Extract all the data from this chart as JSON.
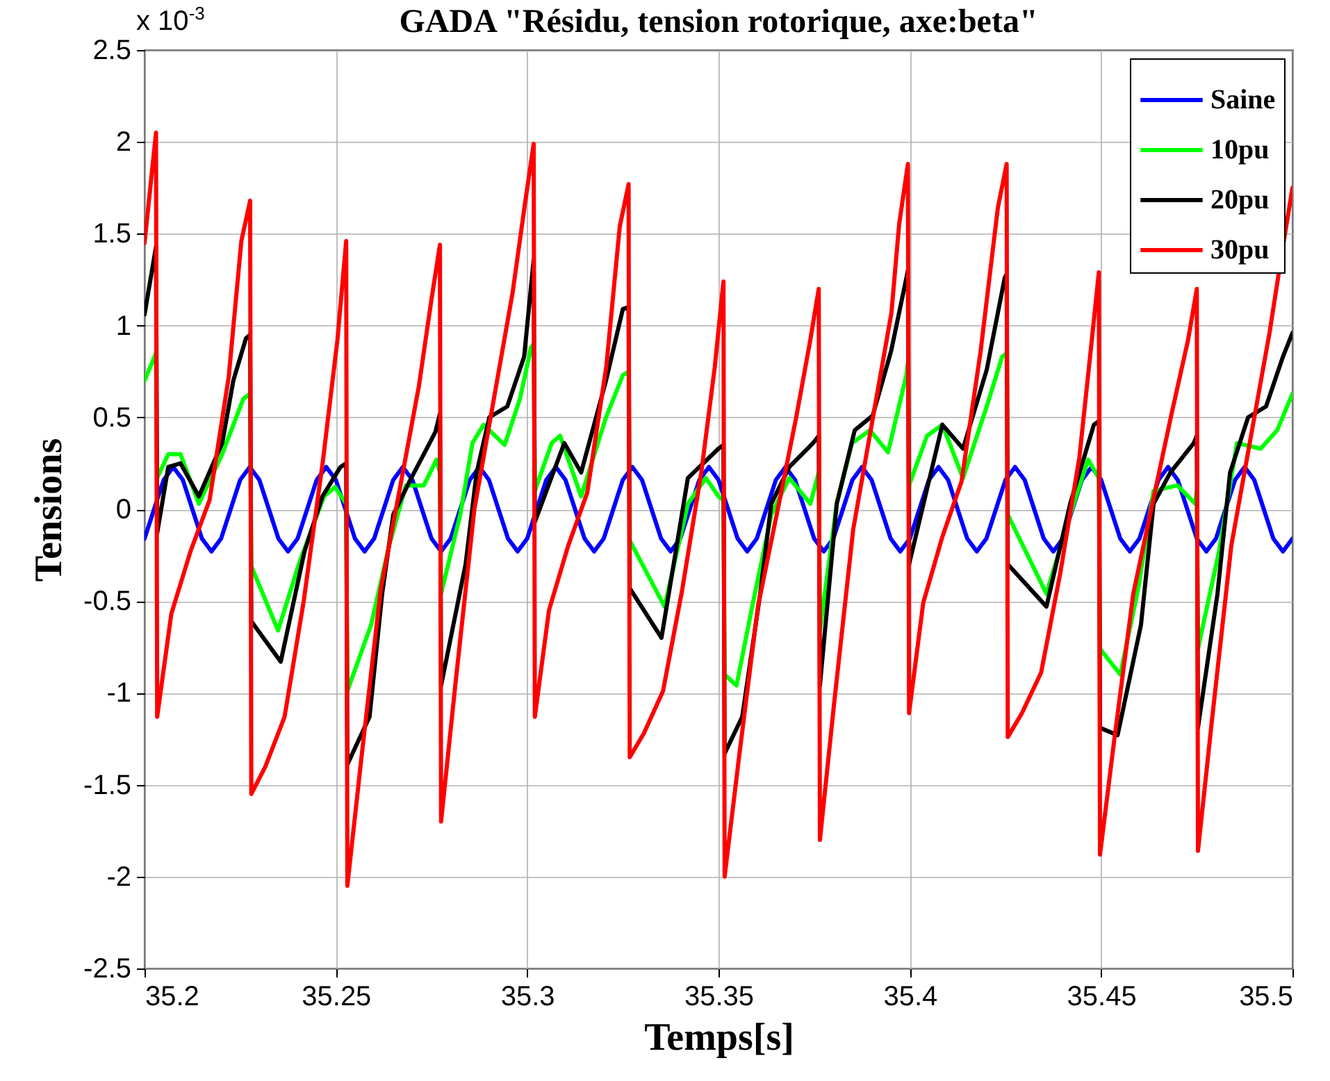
{
  "chart_data": {
    "type": "line",
    "title": "GADA \"Résidu, tension rotorique, axe:beta\"",
    "xlabel": "Temps[s]",
    "ylabel": "Tensions",
    "annotations": [
      "x 10$^{-3}$"
    ],
    "xlim": [
      35.2,
      35.5
    ],
    "xticks": [
      35.2,
      35.25,
      35.3,
      35.35,
      35.4,
      35.45,
      35.5
    ],
    "ylim": [
      -2.5,
      2.5
    ],
    "yticks": [
      -2.5,
      -2,
      -1.5,
      -1,
      -0.5,
      0,
      0.5,
      1,
      1.5,
      2,
      2.5
    ],
    "grid": true,
    "legend": "top right",
    "line_style": "solid",
    "series": [
      {
        "name": "Saine",
        "color": "#0000ff",
        "x": [
          35.2,
          35.2025,
          35.205,
          35.2075,
          35.21,
          35.2125,
          35.215,
          35.2175,
          35.22,
          35.2225,
          35.225,
          35.2275,
          35.23,
          35.2325,
          35.235,
          35.2375,
          35.24,
          35.2425,
          35.245,
          35.2475,
          35.25,
          35.2525,
          35.255,
          35.2575,
          35.26,
          35.2625,
          35.265,
          35.2675,
          35.27,
          35.2725,
          35.275,
          35.2775,
          35.28,
          35.2825,
          35.285,
          35.2875,
          35.29,
          35.2925,
          35.295,
          35.2975,
          35.3,
          35.3025,
          35.305,
          35.3075,
          35.31,
          35.3125,
          35.315,
          35.3175,
          35.32,
          35.3225,
          35.325,
          35.3275,
          35.33,
          35.3325,
          35.335,
          35.3375,
          35.34,
          35.3425,
          35.345,
          35.3475,
          35.35,
          35.3525,
          35.355,
          35.3575,
          35.36,
          35.3625,
          35.365,
          35.3675,
          35.37,
          35.3725,
          35.375,
          35.3775,
          35.38,
          35.3825,
          35.385,
          35.3875,
          35.39,
          35.3925,
          35.395,
          35.3975,
          35.4,
          35.4025,
          35.405,
          35.4075,
          35.41,
          35.4125,
          35.415,
          35.4175,
          35.42,
          35.4225,
          35.425,
          35.4275,
          35.43,
          35.4325,
          35.435,
          35.4375,
          35.44,
          35.4425,
          35.445,
          35.4475,
          35.45,
          35.4525,
          35.455,
          35.4575,
          35.46,
          35.4625,
          35.465,
          35.4675,
          35.47,
          35.4725,
          35.475,
          35.4775,
          35.48,
          35.4825,
          35.485,
          35.4875,
          35.49,
          35.4925,
          35.495,
          35.4975,
          35.5
        ],
        "values": [
          -0.16,
          0,
          0.16,
          0.23,
          0.16,
          0,
          -0.16,
          -0.23,
          -0.16,
          0,
          0.16,
          0.23,
          0.16,
          0,
          -0.16,
          -0.23,
          -0.16,
          0,
          0.16,
          0.23,
          0.16,
          0,
          -0.16,
          -0.23,
          -0.16,
          0,
          0.16,
          0.23,
          0.16,
          0,
          -0.16,
          -0.23,
          -0.16,
          0,
          0.16,
          0.23,
          0.16,
          0,
          -0.16,
          -0.23,
          -0.16,
          0,
          0.16,
          0.23,
          0.16,
          0,
          -0.16,
          -0.23,
          -0.16,
          0,
          0.16,
          0.23,
          0.16,
          0,
          -0.16,
          -0.23,
          -0.16,
          0,
          0.16,
          0.23,
          0.16,
          0,
          -0.16,
          -0.23,
          -0.16,
          0,
          0.16,
          0.23,
          0.16,
          0,
          -0.16,
          -0.23,
          -0.16,
          0,
          0.16,
          0.23,
          0.16,
          0,
          -0.16,
          -0.23,
          -0.16,
          0,
          0.16,
          0.23,
          0.16,
          0,
          -0.16,
          -0.23,
          -0.16,
          0,
          0.16,
          0.23,
          0.16,
          0,
          -0.16,
          -0.23,
          -0.16,
          0,
          0.16,
          0.23,
          0.16,
          0,
          -0.16,
          -0.23,
          -0.16,
          0,
          0.16,
          0.23,
          0.16,
          0,
          -0.16,
          -0.23,
          -0.16,
          0,
          0.16,
          0.23,
          0.16,
          0,
          -0.16,
          -0.23,
          -0.16
        ]
      },
      {
        "name": "10pu",
        "color": "#00ff00",
        "x": [
          35.2,
          35.203,
          35.2033,
          35.2062,
          35.2094,
          35.2142,
          35.2203,
          35.2258,
          35.2276,
          35.2279,
          35.2349,
          35.2403,
          35.2469,
          35.2498,
          35.2527,
          35.253,
          35.2592,
          35.2639,
          35.2683,
          35.273,
          35.2763,
          35.2772,
          35.2775,
          35.2825,
          35.2857,
          35.2886,
          35.2941,
          35.2981,
          35.301,
          35.3017,
          35.302,
          35.3064,
          35.3086,
          35.3141,
          35.3206,
          35.325,
          35.3265,
          35.3268,
          35.3359,
          35.342,
          35.3467,
          35.35,
          35.3513,
          35.3516,
          35.3547,
          35.3591,
          35.3638,
          35.3685,
          35.374,
          35.3762,
          35.3765,
          35.3809,
          35.3849,
          35.3896,
          35.3943,
          35.3991,
          35.3995,
          35.3998,
          35.4045,
          35.4085,
          35.4139,
          35.4201,
          35.4241,
          35.4253,
          35.4256,
          35.4357,
          35.4419,
          35.4466,
          35.4494,
          35.4497,
          35.455,
          35.4597,
          35.4637,
          35.4699,
          35.4746,
          35.475,
          35.4753,
          35.4808,
          35.4855,
          35.4917,
          35.496,
          35.5
        ],
        "values": [
          0.7,
          0.85,
          0.17,
          0.3,
          0.3,
          0.03,
          0.3,
          0.6,
          0.63,
          -0.31,
          -0.66,
          -0.3,
          0.07,
          0.12,
          0.03,
          -0.99,
          -0.63,
          -0.2,
          0.13,
          0.13,
          0.27,
          0.2,
          -0.46,
          -0.03,
          0.36,
          0.46,
          0.35,
          0.6,
          0.88,
          0.9,
          0.1,
          0.36,
          0.4,
          0.07,
          0.5,
          0.73,
          0.75,
          -0.17,
          -0.53,
          0.03,
          0.17,
          0.07,
          0.05,
          -0.9,
          -0.96,
          -0.5,
          -0.03,
          0.17,
          0.03,
          0.2,
          -0.66,
          0.03,
          0.36,
          0.43,
          0.31,
          0.73,
          0.8,
          0.13,
          0.4,
          0.46,
          0.17,
          0.56,
          0.83,
          0.85,
          -0.03,
          -0.46,
          -0.03,
          0.27,
          0.17,
          -0.76,
          -0.9,
          -0.43,
          0.1,
          0.13,
          0.03,
          0.1,
          -0.76,
          -0.23,
          0.36,
          0.33,
          0.43,
          0.63
        ]
      },
      {
        "name": "20pu",
        "color": "#000000",
        "x": [
          35.2,
          35.203,
          35.2033,
          35.2062,
          35.2094,
          35.2142,
          35.2203,
          35.2232,
          35.2265,
          35.2276,
          35.2279,
          35.2356,
          35.2418,
          35.2465,
          35.2512,
          35.2527,
          35.253,
          35.2588,
          35.2621,
          35.265,
          35.2697,
          35.273,
          35.276,
          35.2772,
          35.2775,
          35.2839,
          35.2868,
          35.2901,
          35.2948,
          35.2992,
          35.3017,
          35.302,
          35.3097,
          35.3141,
          35.3206,
          35.325,
          35.3265,
          35.3268,
          35.3351,
          35.342,
          35.35,
          35.3513,
          35.3516,
          35.3562,
          35.3609,
          35.3638,
          35.3685,
          35.3747,
          35.3762,
          35.3765,
          35.3809,
          35.3856,
          35.3903,
          35.3951,
          35.3995,
          35.3998,
          35.4085,
          35.4139,
          35.4201,
          35.4248,
          35.4253,
          35.4256,
          35.4357,
          35.4419,
          35.4481,
          35.4494,
          35.4497,
          35.4543,
          35.4604,
          35.4637,
          35.4681,
          35.4742,
          35.475,
          35.4753,
          35.4804,
          35.4837,
          35.4884,
          35.4931,
          35.4975,
          35.5
        ],
        "values": [
          1.06,
          1.43,
          -0.13,
          0.23,
          0.25,
          0.07,
          0.36,
          0.7,
          0.93,
          0.95,
          -0.61,
          -0.83,
          -0.23,
          0.07,
          0.23,
          0.25,
          -1.39,
          -1.13,
          -0.46,
          -0.03,
          0.17,
          0.3,
          0.42,
          0.52,
          -0.96,
          -0.3,
          0.2,
          0.5,
          0.56,
          0.83,
          1.36,
          -0.07,
          0.36,
          0.2,
          0.7,
          1.09,
          1.1,
          -0.43,
          -0.7,
          0.17,
          0.33,
          0.35,
          -1.33,
          -1.13,
          -0.46,
          0.03,
          0.23,
          0.36,
          0.4,
          -0.96,
          0.03,
          0.43,
          0.51,
          0.86,
          1.3,
          -0.3,
          0.46,
          0.33,
          0.76,
          1.26,
          1.28,
          -0.3,
          -0.53,
          0.03,
          0.46,
          0.48,
          -1.19,
          -1.23,
          -0.63,
          0.03,
          0.2,
          0.36,
          0.4,
          -1.19,
          -0.46,
          0.2,
          0.5,
          0.56,
          0.83,
          0.96
        ]
      },
      {
        "name": "30pu",
        "color": "#ff0000",
        "x": [
          35.2,
          35.203,
          35.2033,
          35.207,
          35.212,
          35.217,
          35.222,
          35.2253,
          35.2276,
          35.2279,
          35.2316,
          35.2366,
          35.2416,
          35.2466,
          35.2504,
          35.2527,
          35.253,
          35.2567,
          35.2617,
          35.2667,
          35.2717,
          35.2749,
          35.2772,
          35.2775,
          35.2812,
          35.2862,
          35.2912,
          35.2962,
          35.2994,
          35.3017,
          35.302,
          35.3057,
          35.3107,
          35.3157,
          35.3207,
          35.3242,
          35.3265,
          35.3268,
          35.3305,
          35.3355,
          35.3405,
          35.3455,
          35.349,
          35.3513,
          35.3516,
          35.3553,
          35.3603,
          35.3653,
          35.3703,
          35.3739,
          35.3762,
          35.3765,
          35.3802,
          35.3852,
          35.3902,
          35.3952,
          35.3972,
          35.3995,
          35.3998,
          35.4035,
          35.4085,
          35.4135,
          35.4185,
          35.423,
          35.4253,
          35.4256,
          35.4293,
          35.4343,
          35.4393,
          35.4443,
          35.4471,
          35.4494,
          35.4497,
          35.4534,
          35.4584,
          35.4634,
          35.4684,
          35.4727,
          35.475,
          35.4753,
          35.479,
          35.484,
          35.489,
          35.494,
          35.4975,
          35.5
        ],
        "values": [
          1.45,
          2.05,
          -1.13,
          -0.57,
          -0.23,
          0.05,
          0.72,
          1.46,
          1.68,
          -1.55,
          -1.4,
          -1.13,
          -0.5,
          0.26,
          0.92,
          1.46,
          -2.05,
          -1.35,
          -0.44,
          0.11,
          0.67,
          1.13,
          1.44,
          -1.7,
          -0.96,
          0,
          0.59,
          1.18,
          1.66,
          1.99,
          -1.13,
          -0.55,
          -0.2,
          0.09,
          0.78,
          1.54,
          1.77,
          -1.35,
          -1.22,
          -0.99,
          -0.44,
          0.2,
          0.77,
          1.24,
          -2,
          -1.36,
          -0.53,
          -0.02,
          0.5,
          0.91,
          1.2,
          -1.8,
          -1.06,
          -0.11,
          0.48,
          1.07,
          1.55,
          1.88,
          -1.11,
          -0.51,
          -0.15,
          0.15,
          0.86,
          1.64,
          1.88,
          -1.24,
          -1.11,
          -0.89,
          -0.35,
          0.28,
          0.83,
          1.29,
          -1.88,
          -1.26,
          -0.46,
          0.03,
          0.52,
          0.92,
          1.2,
          -1.86,
          -1.14,
          -0.2,
          0.38,
          0.96,
          1.43,
          1.75
        ]
      }
    ]
  }
}
